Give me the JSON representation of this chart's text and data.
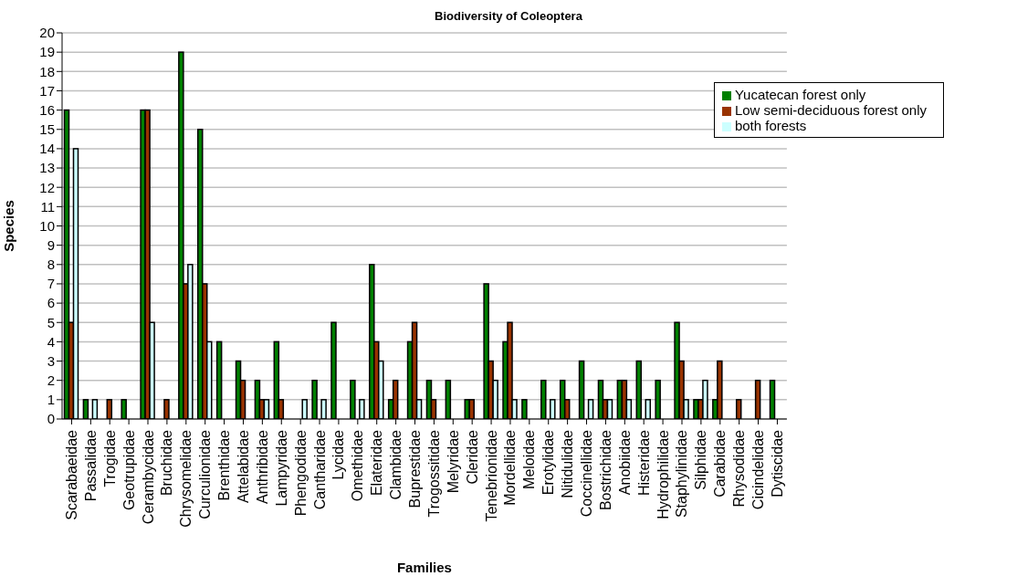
{
  "chart_data": {
    "type": "bar",
    "title": "Biodiversity of Coleoptera",
    "xlabel": "Families",
    "ylabel": "Species",
    "categories": [
      "Scarabaeidae",
      "Passalidae",
      "Trogidae",
      "Geotrupidae",
      "Cerambycidae",
      "Bruchidae",
      "Chrysomelidae",
      "Curculionidae",
      "Brenthidae",
      "Attelabidae",
      "Anthribidae",
      "Lampyridae",
      "Phengodidae",
      "Cantharidae",
      "Lycidae",
      "Omethidae",
      "Elateridae",
      "Clambidae",
      "Buprestidae",
      "Trogossitidae",
      "Melyridae",
      "Cleridae",
      "Tenebrionidae",
      "Mordellidae",
      "Meloidae",
      "Erotylidae",
      "Nitidulidae",
      "Coccinellidae",
      "Bostrichidae",
      "Anobiidae",
      "Histeridae",
      "Hydrophilidae",
      "Staphylinidae",
      "Silphidae",
      "Carabidae",
      "Rhysodidae",
      "Cicindelidae",
      "Dytiscidae"
    ],
    "series": [
      {
        "name": "Yucatecan forest only",
        "color": "#008000",
        "values": [
          16,
          1,
          0,
          1,
          16,
          0,
          19,
          15,
          4,
          3,
          2,
          4,
          0,
          2,
          5,
          2,
          8,
          1,
          4,
          2,
          2,
          1,
          7,
          4,
          1,
          2,
          2,
          3,
          2,
          2,
          3,
          2,
          5,
          1,
          1,
          0,
          0,
          2
        ]
      },
      {
        "name": "Low semi-deciduous forest only",
        "color": "#993300",
        "values": [
          5,
          0,
          1,
          0,
          16,
          1,
          7,
          7,
          0,
          2,
          1,
          1,
          0,
          0,
          0,
          0,
          4,
          2,
          5,
          1,
          0,
          1,
          3,
          5,
          0,
          0,
          1,
          0,
          1,
          2,
          0,
          0,
          3,
          1,
          3,
          1,
          2,
          0
        ]
      },
      {
        "name": "both forests",
        "color": "#ccffff",
        "values": [
          14,
          1,
          0,
          0,
          5,
          0,
          8,
          4,
          0,
          0,
          1,
          0,
          1,
          1,
          0,
          1,
          3,
          0,
          1,
          0,
          0,
          0,
          2,
          1,
          0,
          1,
          0,
          1,
          1,
          1,
          1,
          0,
          1,
          2,
          0,
          0,
          0,
          0
        ]
      }
    ],
    "ylim": [
      0,
      20
    ],
    "yticks": [
      0,
      1,
      2,
      3,
      4,
      5,
      6,
      7,
      8,
      9,
      10,
      11,
      12,
      13,
      14,
      15,
      16,
      17,
      18,
      19,
      20
    ],
    "grid": "y",
    "legend": "top right"
  }
}
